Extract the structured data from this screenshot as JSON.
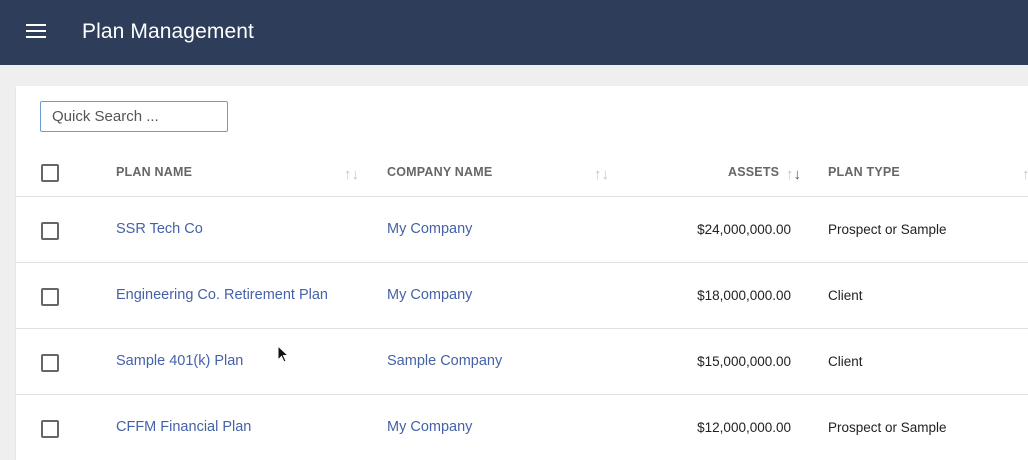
{
  "header": {
    "title": "Plan Management",
    "menu_icon": "hamburger-menu-icon"
  },
  "search": {
    "placeholder": "Quick Search ..."
  },
  "table": {
    "columns": [
      "PLAN NAME",
      "COMPANY NAME",
      "ASSETS",
      "PLAN TYPE"
    ],
    "rows": [
      {
        "plan_name": "SSR Tech Co",
        "company_name": "My Company",
        "assets": "$24,000,000.00",
        "plan_type": "Prospect or Sample"
      },
      {
        "plan_name": "Engineering Co. Retirement Plan",
        "company_name": "My Company",
        "assets": "$18,000,000.00",
        "plan_type": "Client"
      },
      {
        "plan_name": "Sample 401(k) Plan",
        "company_name": "Sample Company",
        "assets": "$15,000,000.00",
        "plan_type": "Client"
      },
      {
        "plan_name": "CFFM Financial Plan",
        "company_name": "My Company",
        "assets": "$12,000,000.00",
        "plan_type": "Prospect or Sample"
      }
    ]
  },
  "colors": {
    "header_bg": "#2d3d5a",
    "link": "#4562a8",
    "search_border": "#6c9bd2"
  }
}
